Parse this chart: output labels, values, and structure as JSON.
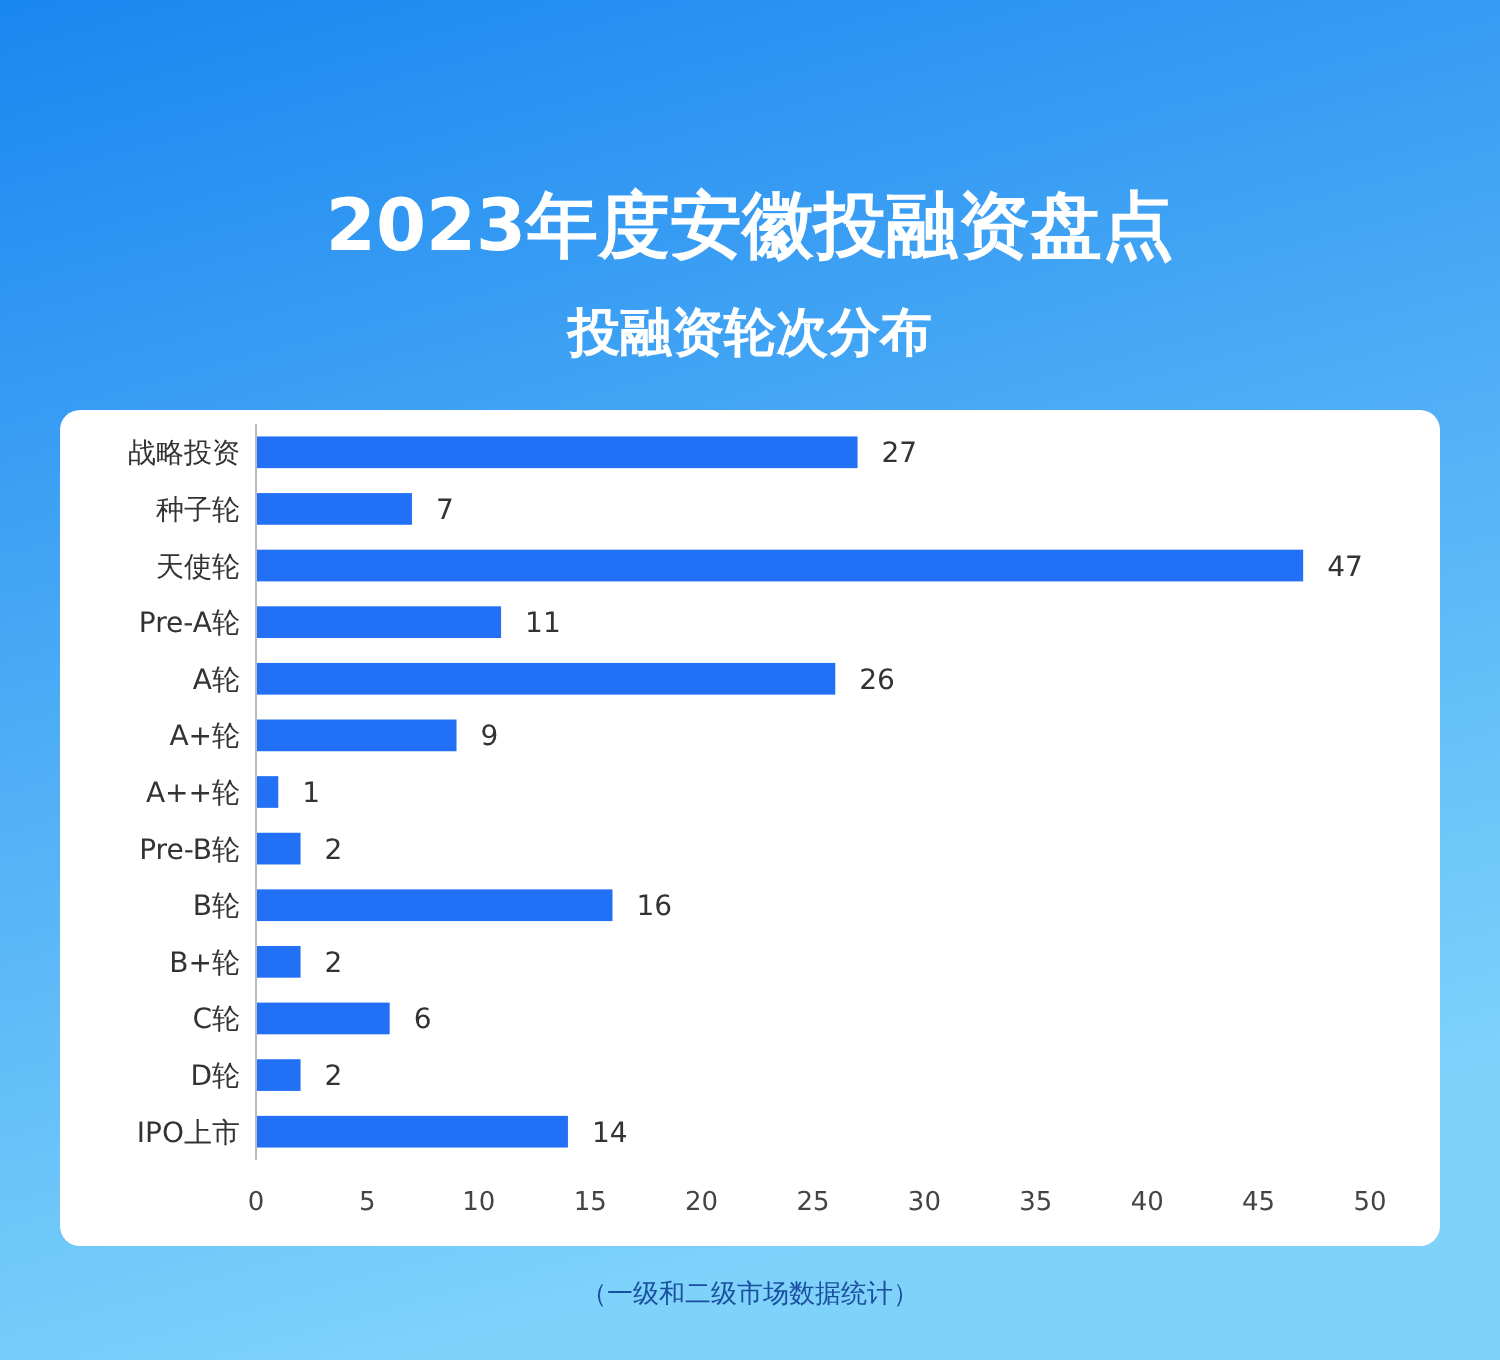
{
  "chart_data": {
    "type": "bar",
    "orientation": "horizontal",
    "title": "2023年度安徽投融资盘点",
    "subtitle": "投融资轮次分布",
    "categories": [
      "战略投资",
      "种子轮",
      "天使轮",
      "Pre-A轮",
      "A轮",
      "A+轮",
      "A++轮",
      "Pre-B轮",
      "B轮",
      "B+轮",
      "C轮",
      "D轮",
      "IPO上市"
    ],
    "values": [
      27,
      7,
      47,
      11,
      26,
      9,
      1,
      2,
      16,
      2,
      6,
      2,
      14
    ],
    "color": "#2170f5",
    "xlim": [
      0,
      50
    ],
    "xticks": [
      0,
      5,
      10,
      15,
      20,
      25,
      30,
      35,
      40,
      45,
      50
    ],
    "data_labels": true,
    "grid": false,
    "annotations": [
      "（一级和二级市场数据统计）"
    ]
  }
}
